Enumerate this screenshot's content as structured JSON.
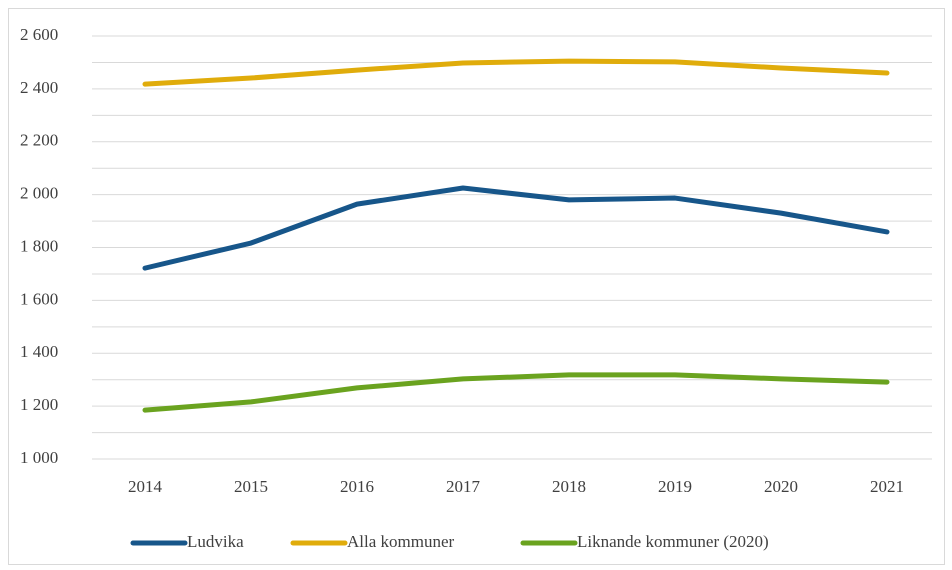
{
  "chart_data": {
    "type": "line",
    "categories": [
      "2014",
      "2015",
      "2016",
      "2017",
      "2018",
      "2019",
      "2020",
      "2021"
    ],
    "series": [
      {
        "name": "Ludvika",
        "color": "#17568a",
        "values": [
          1722,
          1817,
          1964,
          2025,
          1980,
          1987,
          1930,
          1859
        ]
      },
      {
        "name": "Alla kommuner",
        "color": "#e0ac0b",
        "values": [
          2418,
          2441,
          2471,
          2498,
          2505,
          2502,
          2479,
          2460
        ]
      },
      {
        "name": "Liknande kommuner (2020)",
        "color": "#6aa31f",
        "values": [
          1185,
          1216,
          1269,
          1303,
          1318,
          1318,
          1303,
          1291
        ]
      }
    ],
    "ylim": [
      1000,
      2600
    ],
    "yticks": [
      {
        "value": 1000,
        "label": "1 000"
      },
      {
        "value": 1200,
        "label": "1 200"
      },
      {
        "value": 1400,
        "label": "1 400"
      },
      {
        "value": 1600,
        "label": "1 600"
      },
      {
        "value": 1800,
        "label": "1 800"
      },
      {
        "value": 2000,
        "label": "2 000"
      },
      {
        "value": 2200,
        "label": "2 200"
      },
      {
        "value": 2400,
        "label": "2 400"
      },
      {
        "value": 2600,
        "label": "2 600"
      }
    ],
    "minor_yticks": [
      1100,
      1300,
      1500,
      1700,
      1900,
      2100,
      2300,
      2500
    ],
    "grid": true,
    "legend": "bottom"
  }
}
